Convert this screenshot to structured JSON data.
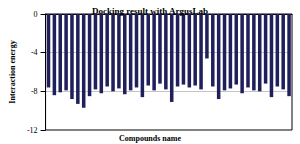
{
  "chart_data": {
    "type": "bar",
    "title": "Docking result with ArgusLab",
    "xlabel": "Compounds name",
    "ylabel": "Interaction energy",
    "categories": [
      null,
      null,
      null,
      null,
      null,
      null,
      null,
      null,
      null,
      null,
      null,
      null,
      null,
      null,
      null,
      null,
      null,
      null,
      null,
      null,
      null,
      null,
      null,
      null,
      null,
      null,
      null,
      null,
      null,
      null,
      null,
      null,
      null,
      null,
      null,
      null,
      null,
      null,
      null,
      null,
      null,
      null
    ],
    "values": [
      -7.6,
      -8.4,
      -8.1,
      -7.9,
      -8.8,
      -9.3,
      -9.7,
      -8.5,
      -7.8,
      -8.2,
      -7.5,
      -8.0,
      -7.7,
      -8.3,
      -7.9,
      -7.6,
      -8.6,
      -7.4,
      -7.9,
      -7.2,
      -7.8,
      -9.1,
      -7.5,
      -7.3,
      -7.6,
      -7.4,
      -7.8,
      -4.6,
      -7.5,
      -8.8,
      -7.9,
      -7.7,
      -7.3,
      -8.2,
      -7.6,
      -7.9,
      -8.0,
      -7.2,
      -8.6,
      -7.5,
      -7.8,
      -8.5
    ],
    "color": "#1f1f5c",
    "ylim": [
      -12,
      0
    ],
    "yticks": [
      -12,
      -8,
      -4,
      0
    ],
    "grid": true
  }
}
